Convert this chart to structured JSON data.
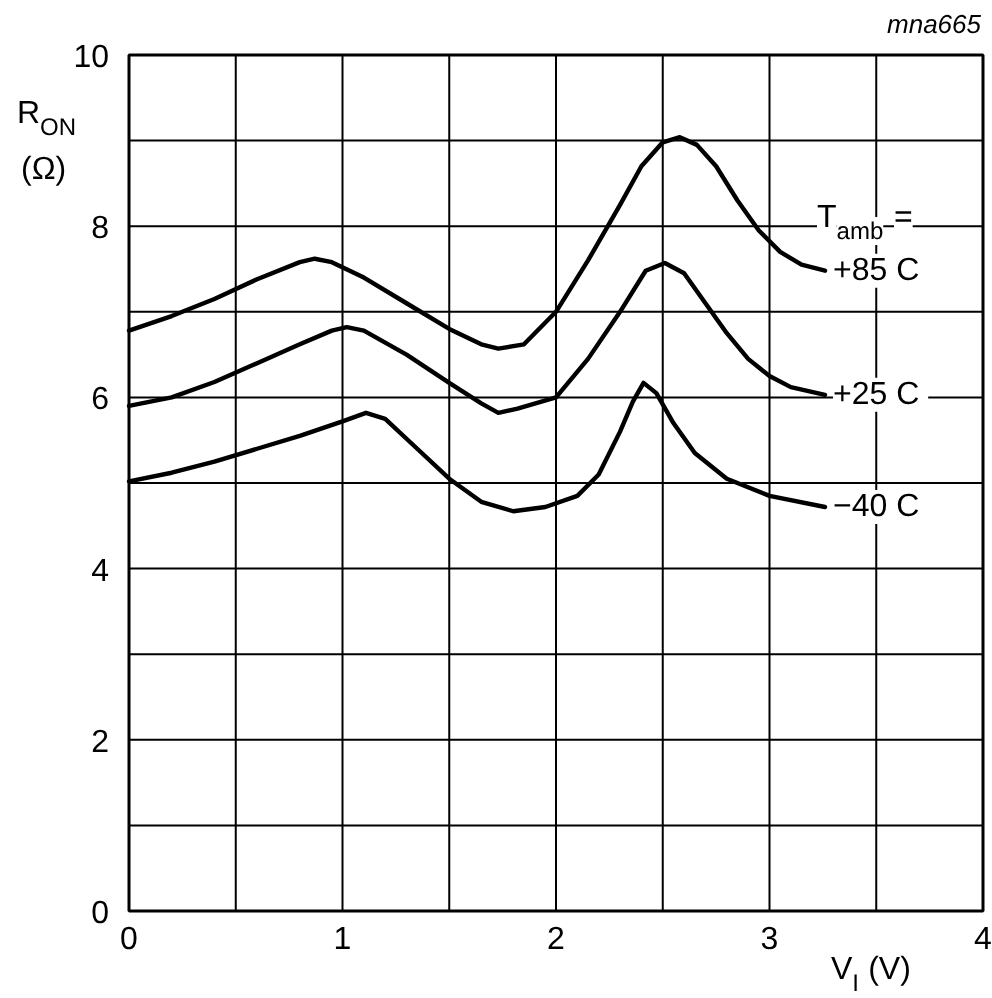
{
  "chart_data": {
    "type": "line",
    "xlabel": "V$_{I}$ (V)",
    "ylabel": "R$_{ON}$ (Ω)",
    "annotations": [
      "mna665",
      "T$_{amb}$ ="
    ],
    "xlim": [
      0,
      4
    ],
    "ylim": [
      0,
      10
    ],
    "xticks": [
      0,
      {
        "value": 0.5,
        "label": null
      },
      1,
      {
        "value": 1.5,
        "label": null
      },
      2,
      {
        "value": 2.5,
        "label": null
      },
      3,
      {
        "value": 3.5,
        "label": null
      },
      4
    ],
    "yticks": [
      0,
      {
        "value": 1,
        "label": null
      },
      2,
      {
        "value": 3,
        "label": null
      },
      4,
      {
        "value": 5,
        "label": null
      },
      6,
      {
        "value": 7,
        "label": null
      },
      8,
      {
        "value": 9,
        "label": null
      },
      10
    ],
    "grid": true,
    "marker": "none",
    "line_style": "solid",
    "series": [
      {
        "name": "+85  C",
        "color": "#000000",
        "x": [
          0,
          0.2,
          0.4,
          0.6,
          0.8,
          0.87,
          0.95,
          1.1,
          1.3,
          1.5,
          1.65,
          1.73,
          1.85,
          2.0,
          2.15,
          2.3,
          2.4,
          2.5,
          2.58,
          2.66,
          2.75,
          2.85,
          2.95,
          3.05,
          3.15,
          3.26
        ],
        "values": [
          6.78,
          6.95,
          7.15,
          7.38,
          7.58,
          7.62,
          7.58,
          7.4,
          7.1,
          6.8,
          6.62,
          6.57,
          6.62,
          7.0,
          7.6,
          8.25,
          8.7,
          8.98,
          9.04,
          8.95,
          8.7,
          8.3,
          7.95,
          7.7,
          7.55,
          7.48
        ]
      },
      {
        "name": "+25  C",
        "color": "#000000",
        "x": [
          0,
          0.2,
          0.4,
          0.6,
          0.8,
          0.95,
          1.02,
          1.1,
          1.3,
          1.5,
          1.65,
          1.73,
          1.82,
          2.0,
          2.15,
          2.3,
          2.42,
          2.51,
          2.6,
          2.7,
          2.8,
          2.9,
          3.0,
          3.1,
          3.26
        ],
        "values": [
          5.9,
          6.0,
          6.18,
          6.4,
          6.62,
          6.78,
          6.82,
          6.78,
          6.5,
          6.17,
          5.93,
          5.82,
          5.87,
          6.0,
          6.45,
          7.0,
          7.48,
          7.57,
          7.45,
          7.1,
          6.75,
          6.45,
          6.25,
          6.12,
          6.03
        ]
      },
      {
        "name": "−40  C",
        "color": "#000000",
        "x": [
          0,
          0.2,
          0.4,
          0.6,
          0.8,
          1.0,
          1.11,
          1.2,
          1.35,
          1.5,
          1.65,
          1.8,
          1.95,
          2.1,
          2.2,
          2.3,
          2.36,
          2.41,
          2.47,
          2.55,
          2.65,
          2.8,
          3.0,
          3.26
        ],
        "values": [
          5.02,
          5.12,
          5.25,
          5.4,
          5.55,
          5.72,
          5.82,
          5.75,
          5.4,
          5.05,
          4.78,
          4.67,
          4.72,
          4.85,
          5.1,
          5.6,
          5.95,
          6.17,
          6.05,
          5.7,
          5.35,
          5.05,
          4.85,
          4.72
        ]
      }
    ]
  }
}
